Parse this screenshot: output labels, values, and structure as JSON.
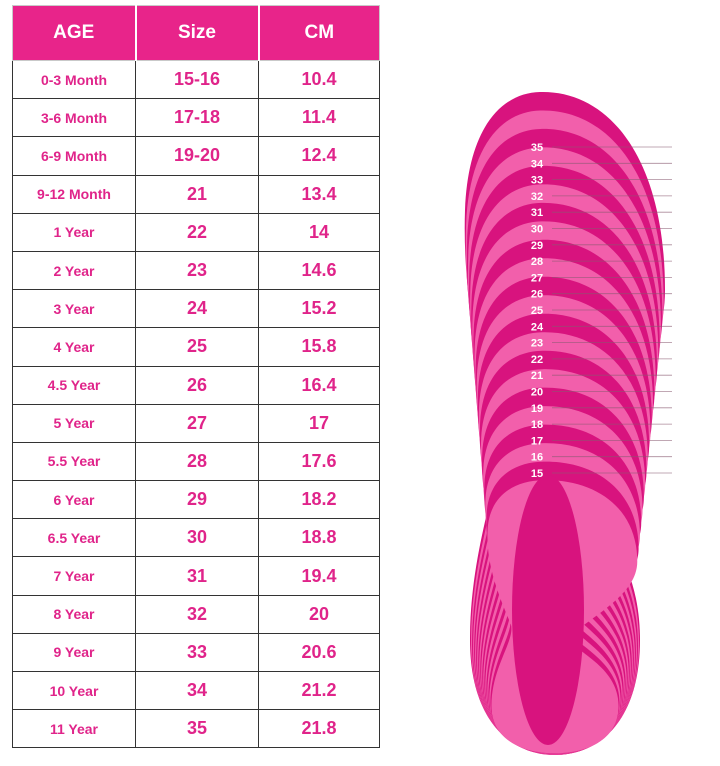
{
  "table": {
    "headers": [
      "AGE",
      "Size",
      "CM"
    ],
    "rows": [
      [
        "0-3 Month",
        "15-16",
        "10.4"
      ],
      [
        "3-6 Month",
        "17-18",
        "11.4"
      ],
      [
        "6-9 Month",
        "19-20",
        "12.4"
      ],
      [
        "9-12 Month",
        "21",
        "13.4"
      ],
      [
        "1 Year",
        "22",
        "14"
      ],
      [
        "2 Year",
        "23",
        "14.6"
      ],
      [
        "3 Year",
        "24",
        "15.2"
      ],
      [
        "4 Year",
        "25",
        "15.8"
      ],
      [
        "4.5 Year",
        "26",
        "16.4"
      ],
      [
        "5 Year",
        "27",
        "17"
      ],
      [
        "5.5 Year",
        "28",
        "17.6"
      ],
      [
        "6 Year",
        "29",
        "18.2"
      ],
      [
        "6.5 Year",
        "30",
        "18.8"
      ],
      [
        "7 Year",
        "31",
        "19.4"
      ],
      [
        "8 Year",
        "32",
        "20"
      ],
      [
        "9 Year",
        "33",
        "20.6"
      ],
      [
        "10 Year",
        "34",
        "21.2"
      ],
      [
        "11 Year",
        "35",
        "21.8"
      ]
    ]
  },
  "sole": {
    "labels": [
      "35",
      "34",
      "33",
      "32",
      "31",
      "30",
      "29",
      "28",
      "27",
      "26",
      "25",
      "24",
      "23",
      "22",
      "21",
      "20",
      "19",
      "18",
      "17",
      "16",
      "15"
    ]
  },
  "colors": {
    "header": "#e8248a",
    "text": "#e0248a",
    "sole_dark": "#d8137e",
    "sole_light": "#f25fab"
  }
}
